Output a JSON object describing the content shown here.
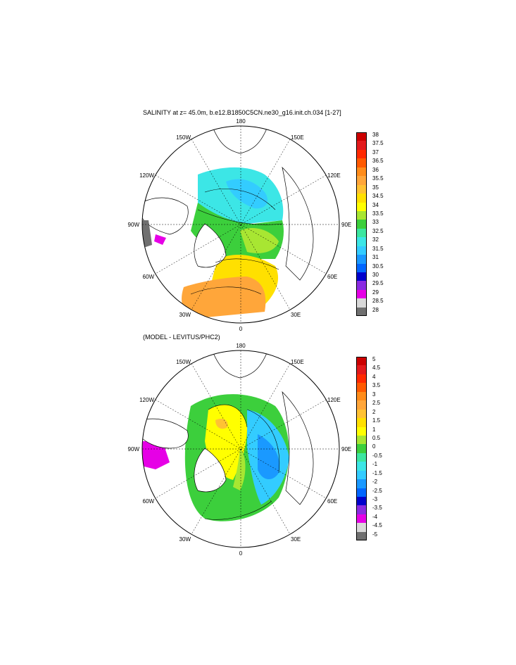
{
  "panels": [
    {
      "title": "SALINITY at z=  45.0m, b.e12.B1850C5CN.ne30_g16.init.ch.034 [1-27]",
      "longitude_labels": [
        "180",
        "150E",
        "120E",
        "90E",
        "60E",
        "30E",
        "0",
        "30W",
        "60W",
        "90W",
        "120W",
        "150W"
      ],
      "colorbar": {
        "labels": [
          "38",
          "37.5",
          "37",
          "36.5",
          "36",
          "35.5",
          "35",
          "34.5",
          "34",
          "33.5",
          "33",
          "32.5",
          "32",
          "31.5",
          "31",
          "30.5",
          "30",
          "29.5",
          "29",
          "28.5",
          "28"
        ],
        "colors": [
          "#cc0000",
          "#e31a1c",
          "#ff2a00",
          "#ff5a00",
          "#ff8c1a",
          "#ffa63a",
          "#ffc233",
          "#ffe000",
          "#ffff00",
          "#a8e632",
          "#3ccf3c",
          "#3ce6a0",
          "#3ce6e6",
          "#33ccff",
          "#1a99ff",
          "#0066ff",
          "#0000cc",
          "#8a2be2",
          "#e600e6",
          "#d9d9d9",
          "#707070"
        ]
      }
    },
    {
      "title": "(MODEL - LEVITUS/PHC2)",
      "longitude_labels": [
        "180",
        "150E",
        "120E",
        "90E",
        "60E",
        "30E",
        "0",
        "30W",
        "60W",
        "90W",
        "120W",
        "150W"
      ],
      "colorbar": {
        "labels": [
          "5",
          "4.5",
          "4",
          "3.5",
          "3",
          "2.5",
          "2",
          "1.5",
          "1",
          "0.5",
          "0",
          "-0.5",
          "-1",
          "-1.5",
          "-2",
          "-2.5",
          "-3",
          "-3.5",
          "-4",
          "-4.5",
          "-5"
        ],
        "colors": [
          "#cc0000",
          "#e31a1c",
          "#ff2a00",
          "#ff5a00",
          "#ff8c1a",
          "#ffa63a",
          "#ffc233",
          "#ffe000",
          "#ffff00",
          "#a8e632",
          "#3ccf3c",
          "#3ce6a0",
          "#3ce6e6",
          "#33ccff",
          "#1a99ff",
          "#0066ff",
          "#0000cc",
          "#8a2be2",
          "#e600e6",
          "#d9d9d9",
          "#707070"
        ]
      }
    }
  ]
}
